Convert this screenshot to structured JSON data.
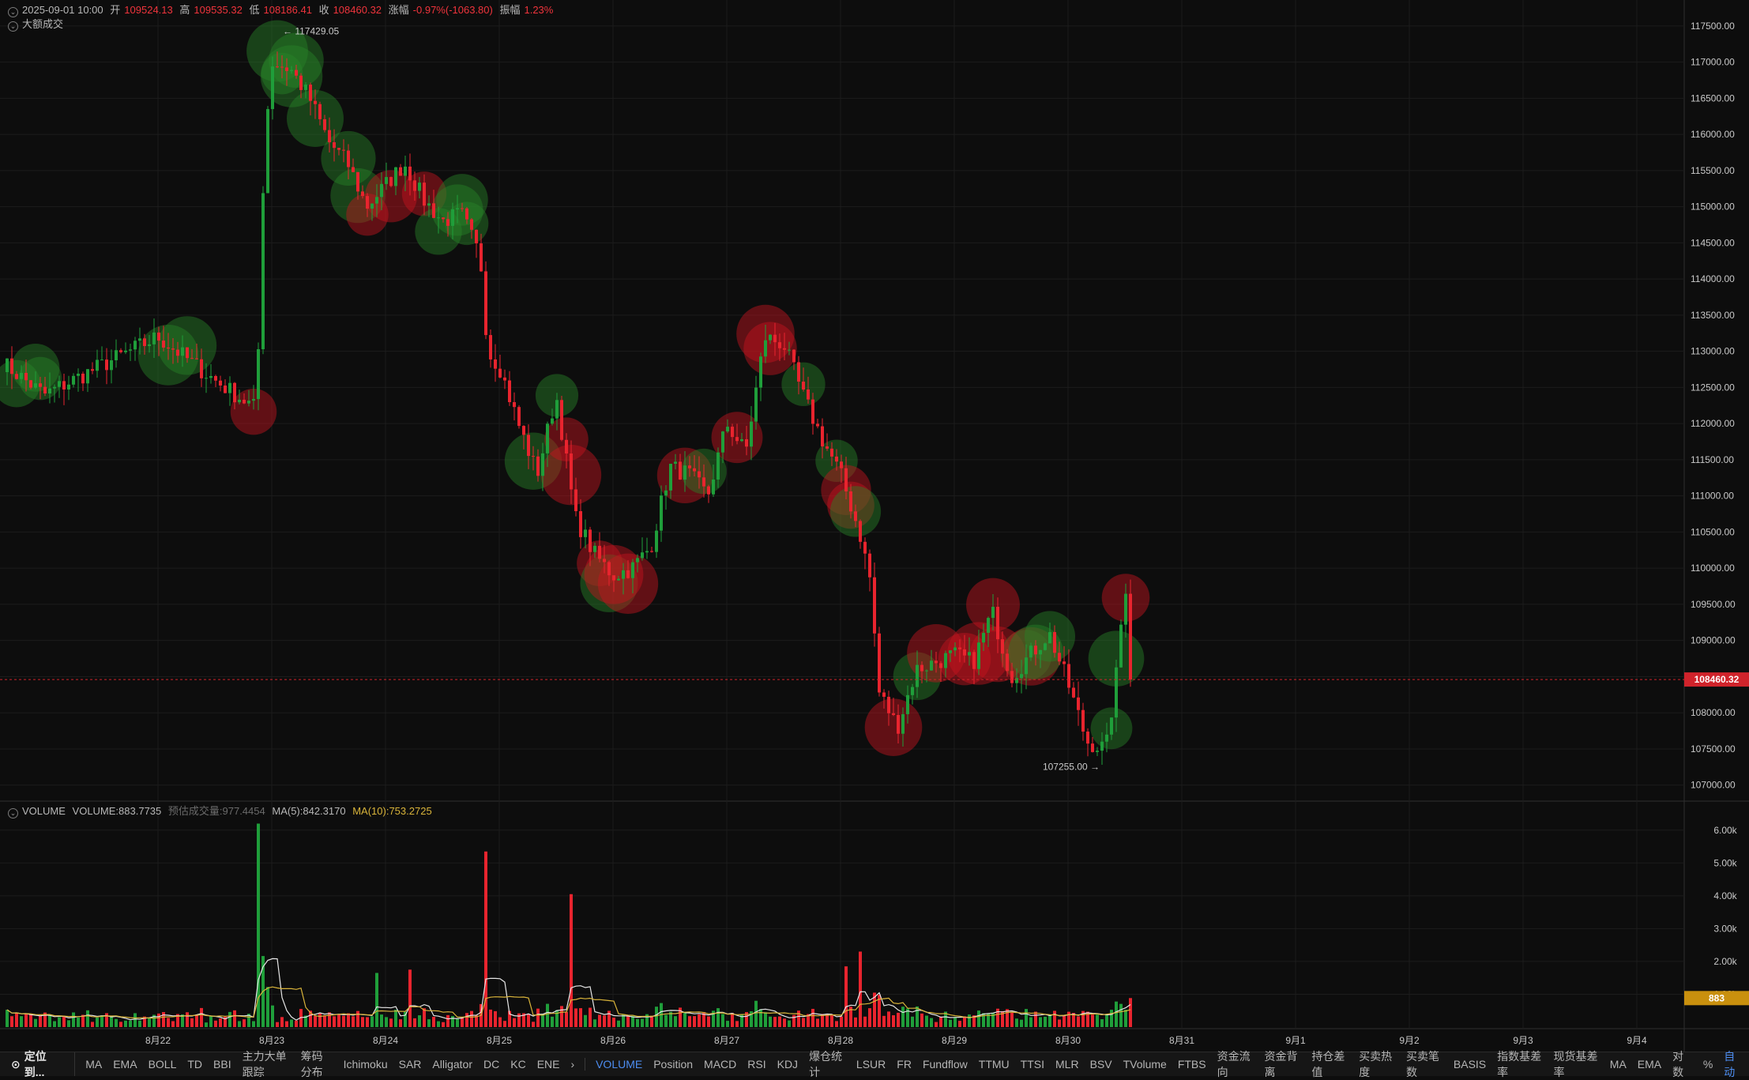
{
  "header": {
    "datetime": "2025-09-01 10:00",
    "open_label": "开",
    "open": "109524.13",
    "high_label": "高",
    "high": "109535.32",
    "low_label": "低",
    "low": "108186.41",
    "close_label": "收",
    "close": "108460.32",
    "change_label": "涨幅",
    "change": "-0.97%(-1063.80)",
    "amplitude_label": "振幅",
    "amplitude": "1.23%",
    "overlay_label": "大额成交"
  },
  "volume_header": {
    "title": "VOLUME",
    "volume": "VOLUME:883.7735",
    "estimate": "预估成交量:977.4454",
    "ma5": "MA(5):842.3170",
    "ma10": "MA(10):753.2725"
  },
  "colors": {
    "up": "#1f9e3a",
    "down": "#e8242e",
    "ma5": "#e6e6e6",
    "ma10": "#d9b43a",
    "last_price_bg": "#d0232b",
    "last_vol_bg": "#c9900e"
  },
  "chart_data": {
    "type": "candlestick",
    "timeframe": "1h",
    "x_ticks": [
      "8月22",
      "8月23",
      "8月24",
      "8月25",
      "8月26",
      "8月27",
      "8月28",
      "8月29",
      "8月30",
      "8月31",
      "9月1",
      "9月2",
      "9月3",
      "9月4"
    ],
    "price_ticks": [
      107000,
      107500,
      108000,
      108500,
      109000,
      109500,
      110000,
      110500,
      111000,
      111500,
      112000,
      112500,
      113000,
      113500,
      114000,
      114500,
      115000,
      115500,
      116000,
      116500,
      117000,
      117500
    ],
    "price_range": [
      106800,
      117750
    ],
    "last_price": "108460.32",
    "max_label": "117429.05",
    "min_label": "107255.00",
    "anchors": [
      [
        -27,
        114300
      ],
      [
        -24,
        114500
      ],
      [
        -21,
        114800
      ],
      [
        -18,
        114100
      ],
      [
        -15,
        113800
      ],
      [
        -12,
        113200
      ],
      [
        -9,
        113000
      ],
      [
        -6,
        112400
      ],
      [
        -3,
        112800
      ],
      [
        0,
        113200
      ],
      [
        3,
        112600
      ],
      [
        5.2,
        112200
      ],
      [
        5.6,
        115800
      ],
      [
        6,
        117000
      ],
      [
        7,
        116900
      ],
      [
        8,
        116500
      ],
      [
        9,
        115900
      ],
      [
        10,
        115600
      ],
      [
        11,
        115000
      ],
      [
        12,
        115300
      ],
      [
        13,
        115600
      ],
      [
        14,
        115100
      ],
      [
        15,
        114800
      ],
      [
        16,
        114900
      ],
      [
        17,
        114300
      ],
      [
        17.4,
        113000
      ],
      [
        18,
        112800
      ],
      [
        19,
        112000
      ],
      [
        20,
        111300
      ],
      [
        21,
        112400
      ],
      [
        22,
        110700
      ],
      [
        23,
        110200
      ],
      [
        24,
        109900
      ],
      [
        25,
        110000
      ],
      [
        26,
        110300
      ],
      [
        27,
        111400
      ],
      [
        28,
        111300
      ],
      [
        29,
        111000
      ],
      [
        30,
        112000
      ],
      [
        31,
        111600
      ],
      [
        32,
        113200
      ],
      [
        33,
        113100
      ],
      [
        34,
        112400
      ],
      [
        35,
        111800
      ],
      [
        36,
        111300
      ],
      [
        37,
        110500
      ],
      [
        37.6,
        109800
      ],
      [
        38,
        108300
      ],
      [
        39,
        107800
      ],
      [
        40,
        108600
      ],
      [
        41,
        108700
      ],
      [
        42,
        108800
      ],
      [
        43,
        108700
      ],
      [
        44,
        109400
      ],
      [
        45,
        108500
      ],
      [
        46,
        108800
      ],
      [
        47,
        109100
      ],
      [
        48,
        108400
      ],
      [
        49,
        107600
      ],
      [
        50,
        107500
      ],
      [
        50.5,
        108400
      ],
      [
        51,
        109800
      ],
      [
        51.3,
        109400
      ],
      [
        51.5,
        108460
      ]
    ],
    "volume_ticks": [
      1000,
      2000,
      3000,
      4000,
      5000,
      6000
    ],
    "volume_tick_labels": [
      "1.00k",
      "2.00k",
      "3.00k",
      "4.00k",
      "5.00k",
      "6.00k"
    ],
    "volume_range": [
      0,
      6500
    ],
    "last_volume": "883",
    "volume_spikes": [
      [
        5.4,
        6200
      ],
      [
        17.2,
        5350
      ],
      [
        21.7,
        4050
      ],
      [
        37.1,
        2300
      ],
      [
        36.4,
        1850
      ],
      [
        13.2,
        1750
      ],
      [
        11.6,
        1650
      ]
    ]
  },
  "toolbar": {
    "locate": "定位到...",
    "main_indicators": [
      "MA",
      "EMA",
      "BOLL",
      "TD",
      "BBI",
      "主力大单跟踪",
      "筹码分布",
      "Ichimoku",
      "SAR",
      "Alligator",
      "DC",
      "KC",
      "ENE"
    ],
    "more": "›",
    "sub_indicators": [
      "VOLUME",
      "Position",
      "MACD",
      "RSI",
      "KDJ",
      "爆仓统计",
      "LSUR",
      "FR",
      "Fundflow",
      "TTMU",
      "TTSI",
      "MLR",
      "BSV",
      "TVolume",
      "FTBS",
      "资金流向",
      "资金背离",
      "持仓差值",
      "买卖热度",
      "买卖笔数",
      "BASIS",
      "指数基差率",
      "现货基差率",
      "MA",
      "EMA"
    ],
    "active": "VOLUME",
    "right": [
      "对数",
      "%",
      "自动"
    ]
  }
}
